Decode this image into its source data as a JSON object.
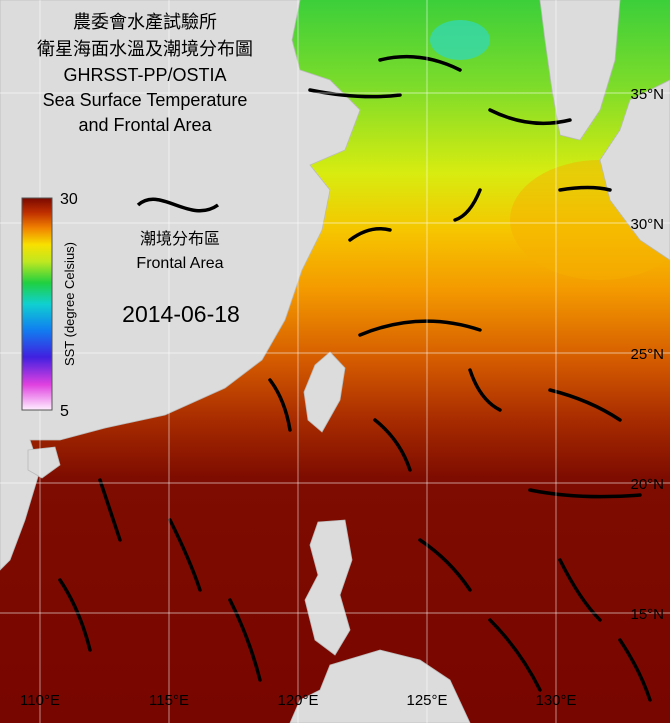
{
  "title_lines": [
    "農委會水產試驗所",
    "衛星海面水溫及潮境分布圖",
    "GHRSST-PP/OSTIA",
    "Sea Surface Temperature",
    "and Frontal Area"
  ],
  "colorbar": {
    "label": "SST (degree Celsius)",
    "lim": [
      5,
      30
    ],
    "ticks": [
      30,
      5
    ]
  },
  "legend": {
    "label_zh": "潮境分布區",
    "label_en": "Frontal Area"
  },
  "date": "2014-06-18",
  "lat_ticks": [
    {
      "value": 35,
      "label": "35°N"
    },
    {
      "value": 30,
      "label": "30°N"
    },
    {
      "value": 25,
      "label": "25°N"
    },
    {
      "value": 20,
      "label": "20°N"
    },
    {
      "value": 15,
      "label": "15°N"
    }
  ],
  "lon_ticks": [
    {
      "value": 110,
      "label": "110°E"
    },
    {
      "value": 115,
      "label": "115°E"
    },
    {
      "value": 120,
      "label": "120°E"
    },
    {
      "value": 125,
      "label": "125°E"
    },
    {
      "value": 130,
      "label": "130°E"
    }
  ]
}
